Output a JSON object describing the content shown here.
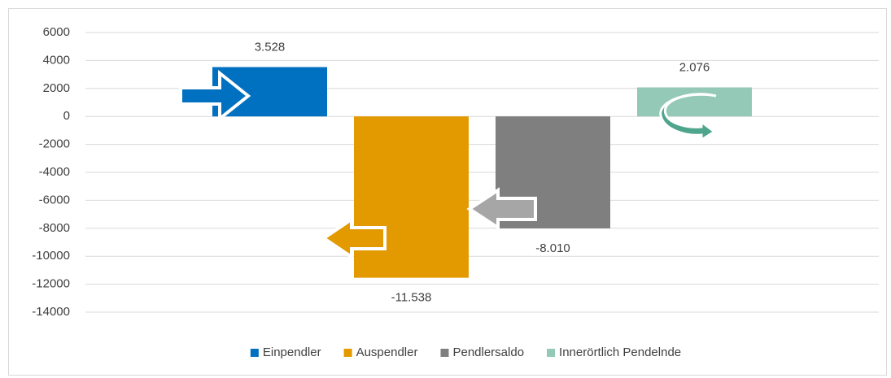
{
  "chart_data": {
    "type": "bar",
    "categories": [
      null
    ],
    "series": [
      {
        "name": "Einpendler",
        "color": "#0070c0",
        "values": [
          3528
        ],
        "value_labels": [
          "3.528"
        ]
      },
      {
        "name": "Auspendler",
        "color": "#e39a00",
        "values": [
          -11538
        ],
        "value_labels": [
          "-11.538"
        ]
      },
      {
        "name": "Pendlersaldo",
        "color": "#7f7f7f",
        "values": [
          -8010
        ],
        "value_labels": [
          "-8.010"
        ]
      },
      {
        "name": "Innerörtlich Pendelnde",
        "color": "#93c9b6",
        "values": [
          2076
        ],
        "value_labels": [
          "2.076"
        ]
      }
    ],
    "ylim": [
      -14000,
      6000
    ],
    "yticks": [
      -14000,
      -12000,
      -10000,
      -8000,
      -6000,
      -4000,
      -2000,
      0,
      2000,
      4000,
      6000
    ],
    "grid": true,
    "legend": "bottom"
  }
}
